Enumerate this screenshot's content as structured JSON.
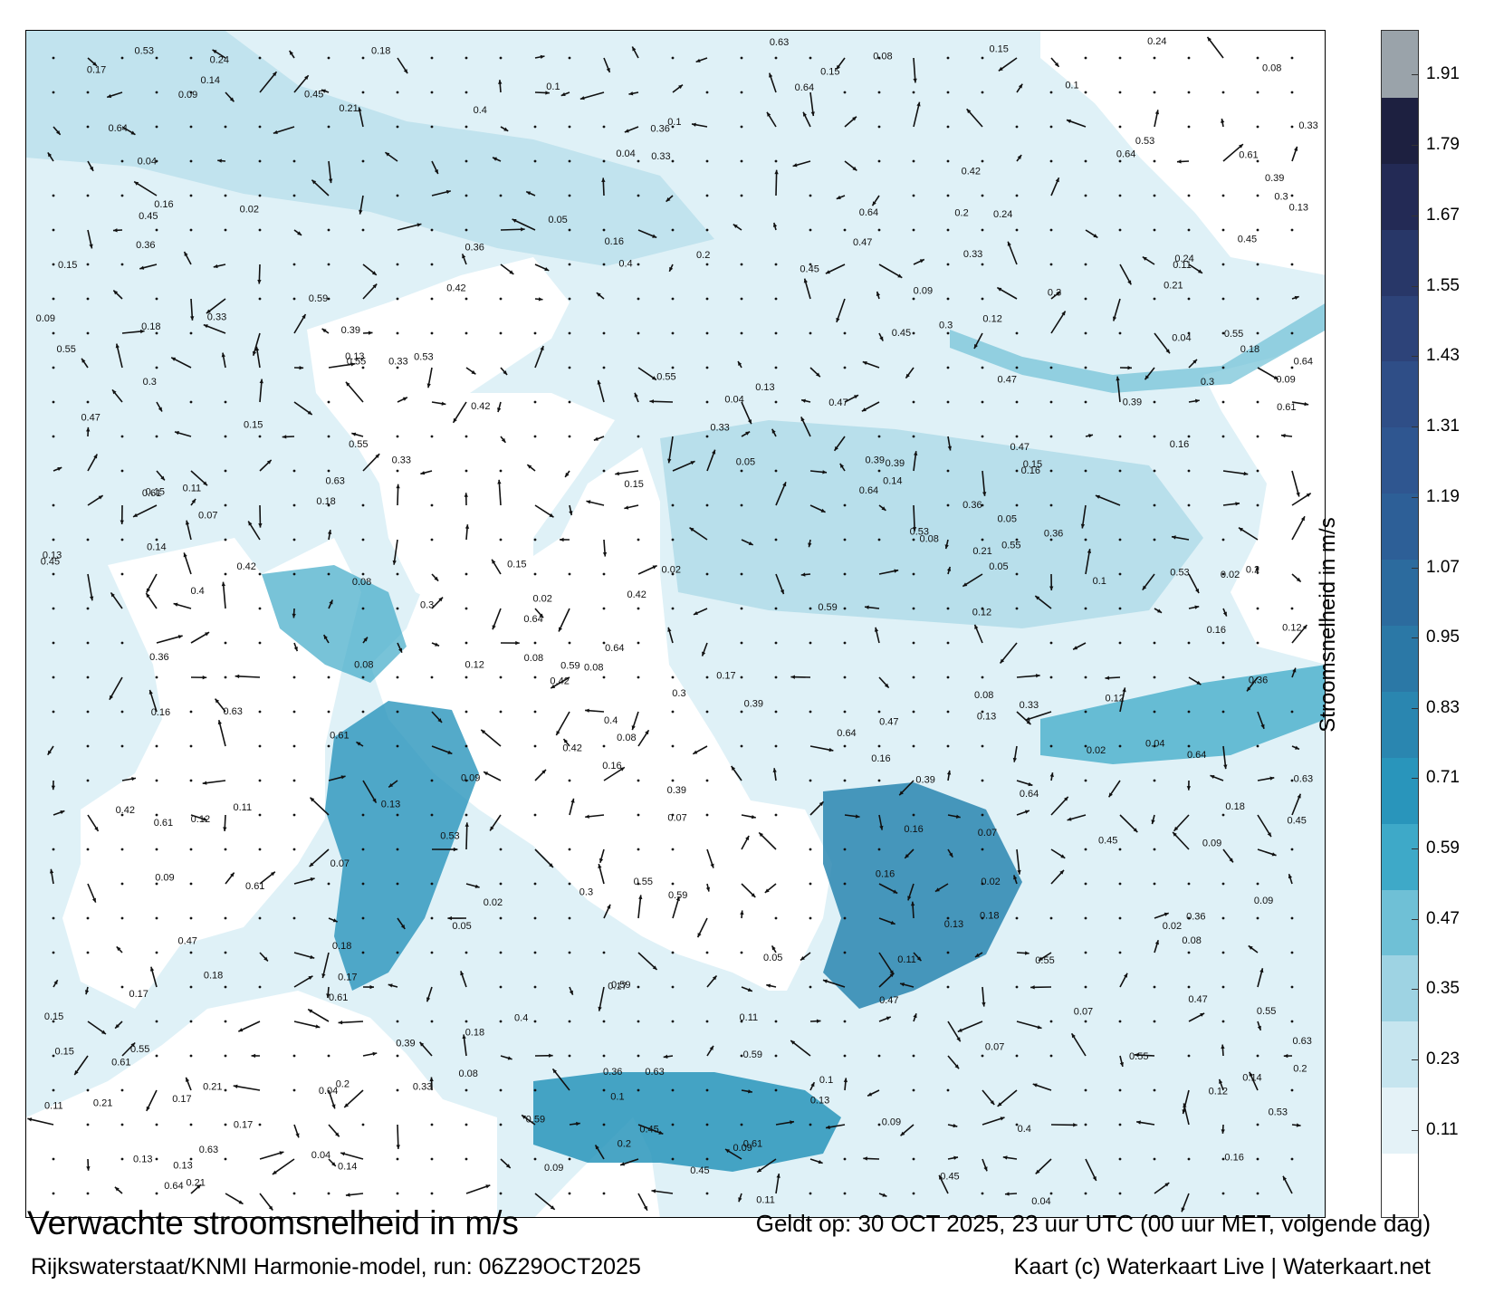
{
  "map": {
    "title": "Verwachte stroomsnelheid in m/s",
    "valid_time": "Geldt op: 30 OCT 2025, 23 uur UTC (00 uur MET, volgende dag)",
    "model_run": "Rijkswaterstaat/KNMI Harmonie-model, run: 06Z29OCT2025",
    "credit": "Kaart (c) Waterkaart Live | Waterkaart.net",
    "sample_labels": [
      "0.05",
      "0.08",
      "0.12",
      "0.1",
      "0.09",
      "0.11",
      "0.16",
      "0.14",
      "0.2",
      "0.3",
      "0.39",
      "0.45",
      "0.53",
      "0.64",
      "0.55",
      "0.61",
      "0.47",
      "0.36",
      "0.24",
      "0.15",
      "0.18",
      "0.07",
      "0.04",
      "0.02",
      "0.13",
      "0.17",
      "0.21",
      "0.33",
      "0.42",
      "0.59",
      "0.63",
      "0.4"
    ]
  },
  "colorbar": {
    "label": "Stroomsnelheid in m/s",
    "ticks": [
      "1.91",
      "1.79",
      "1.67",
      "1.55",
      "1.43",
      "1.31",
      "1.19",
      "1.07",
      "0.95",
      "0.83",
      "0.71",
      "0.59",
      "0.47",
      "0.35",
      "0.23",
      "0.11"
    ],
    "colors": [
      "#ffffff",
      "#e4f2f7",
      "#c6e5ef",
      "#9ed3e3",
      "#6fc0d6",
      "#3ea9c8",
      "#2995bb",
      "#2a86b0",
      "#2b78a6",
      "#2c6b9e",
      "#2d5f97",
      "#2f5690",
      "#2f4e87",
      "#2d4379",
      "#283768",
      "#232a55",
      "#1d2040",
      "#9aa3aa"
    ]
  }
}
